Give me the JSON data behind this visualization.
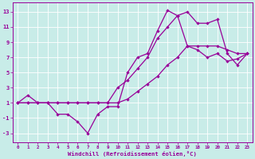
{
  "background_color": "#c8ece8",
  "grid_color": "#b0d8d4",
  "line_color": "#990099",
  "marker": "D",
  "markersize": 2.2,
  "linewidth": 0.9,
  "xlabel": "Windchill (Refroidissement éolien,°C)",
  "xlim": [
    -0.5,
    23.5
  ],
  "ylim": [
    -4.2,
    14.2
  ],
  "xticks": [
    0,
    1,
    2,
    3,
    4,
    5,
    6,
    7,
    8,
    9,
    10,
    11,
    12,
    13,
    14,
    15,
    16,
    17,
    18,
    19,
    20,
    21,
    22,
    23
  ],
  "yticks": [
    -3,
    -1,
    1,
    3,
    5,
    7,
    9,
    11,
    13
  ],
  "line1_x": [
    0,
    1,
    2,
    3,
    4,
    5,
    6,
    7,
    8,
    9,
    10,
    11,
    12,
    13,
    14,
    15,
    16,
    17,
    18,
    19,
    20,
    21,
    22,
    23
  ],
  "line1_y": [
    1.0,
    1.0,
    1.0,
    1.0,
    1.0,
    1.0,
    1.0,
    1.0,
    1.0,
    1.0,
    1.0,
    1.5,
    2.5,
    3.5,
    4.5,
    6.0,
    7.0,
    8.5,
    8.5,
    8.5,
    8.5,
    8.0,
    7.5,
    7.5
  ],
  "line2_x": [
    0,
    1,
    2,
    3,
    4,
    5,
    6,
    7,
    8,
    9,
    10,
    11,
    12,
    13,
    14,
    15,
    16,
    17,
    18,
    19,
    20,
    21,
    22,
    23
  ],
  "line2_y": [
    1.0,
    2.0,
    1.0,
    1.0,
    -0.5,
    -0.5,
    -1.5,
    -3.0,
    -0.5,
    0.5,
    0.5,
    5.0,
    7.0,
    7.5,
    10.5,
    13.2,
    12.5,
    8.5,
    8.0,
    7.0,
    7.5,
    6.5,
    6.8,
    7.5
  ],
  "line3_x": [
    0,
    1,
    2,
    3,
    4,
    5,
    6,
    7,
    8,
    9,
    10,
    11,
    12,
    13,
    14,
    15,
    16,
    17,
    18,
    19,
    20,
    21,
    22,
    23
  ],
  "line3_y": [
    1.0,
    1.0,
    1.0,
    1.0,
    1.0,
    1.0,
    1.0,
    1.0,
    1.0,
    1.0,
    3.0,
    4.0,
    5.5,
    7.0,
    9.5,
    11.0,
    12.5,
    13.0,
    11.5,
    11.5,
    12.0,
    7.5,
    6.0,
    7.5
  ]
}
